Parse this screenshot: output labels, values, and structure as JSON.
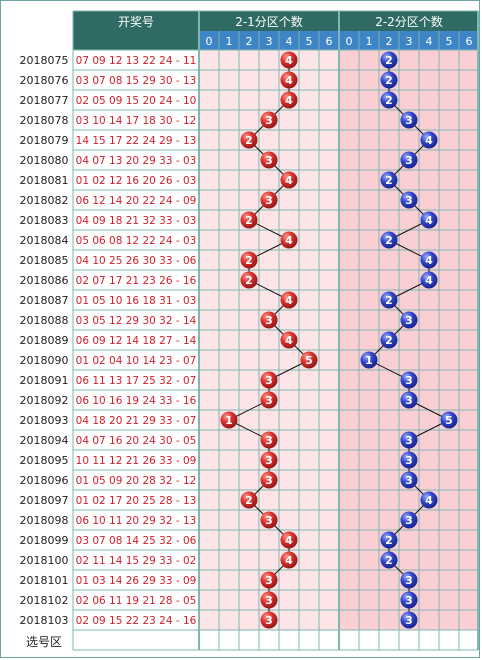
{
  "header": {
    "draw_numbers": "开奖号",
    "zone1_title": "2-1分区个数",
    "zone2_title": "2-2分区个数",
    "digits": [
      "0",
      "1",
      "2",
      "3",
      "4",
      "5",
      "6"
    ]
  },
  "footer": {
    "select_label": "选号区"
  },
  "colors": {
    "header_bg": "#2f6b64",
    "digit_row_bg": "#3d85c6",
    "zone1_bg": "#fde4e6",
    "zone2_bg": "#f9cfd3",
    "grid": "#7fb7b2",
    "draw_text": "#d2202b",
    "ball_red": "#c8262c",
    "ball_blue": "#2a3fbf"
  },
  "chart_data": {
    "type": "table",
    "rows": [
      {
        "issue": "2018075",
        "numbers": "07 09 12 13 22 24 - 11",
        "zone1": 4,
        "zone2": 2
      },
      {
        "issue": "2018076",
        "numbers": "03 07 08 15 29 30 - 13",
        "zone1": 4,
        "zone2": 2
      },
      {
        "issue": "2018077",
        "numbers": "02 05 09 15 20 24 - 10",
        "zone1": 4,
        "zone2": 2
      },
      {
        "issue": "2018078",
        "numbers": "03 10 14 17 18 30 - 12",
        "zone1": 3,
        "zone2": 3
      },
      {
        "issue": "2018079",
        "numbers": "14 15 17 22 24 29 - 13",
        "zone1": 2,
        "zone2": 4
      },
      {
        "issue": "2018080",
        "numbers": "04 07 13 20 29 33 - 03",
        "zone1": 3,
        "zone2": 3
      },
      {
        "issue": "2018081",
        "numbers": "01 02 12 16 20 26 - 03",
        "zone1": 4,
        "zone2": 2
      },
      {
        "issue": "2018082",
        "numbers": "06 12 14 20 22 24 - 09",
        "zone1": 3,
        "zone2": 3
      },
      {
        "issue": "2018083",
        "numbers": "04 09 18 21 32 33 - 03",
        "zone1": 2,
        "zone2": 4
      },
      {
        "issue": "2018084",
        "numbers": "05 06 08 12 22 24 - 03",
        "zone1": 4,
        "zone2": 2
      },
      {
        "issue": "2018085",
        "numbers": "04 10 25 26 30 33 - 06",
        "zone1": 2,
        "zone2": 4
      },
      {
        "issue": "2018086",
        "numbers": "02 07 17 21 23 26 - 16",
        "zone1": 2,
        "zone2": 4
      },
      {
        "issue": "2018087",
        "numbers": "01 05 10 16 18 31 - 03",
        "zone1": 4,
        "zone2": 2
      },
      {
        "issue": "2018088",
        "numbers": "03 05 12 29 30 32 - 14",
        "zone1": 3,
        "zone2": 3
      },
      {
        "issue": "2018089",
        "numbers": "06 09 12 14 18 27 - 14",
        "zone1": 4,
        "zone2": 2
      },
      {
        "issue": "2018090",
        "numbers": "01 02 04 10 14 23 - 07",
        "zone1": 5,
        "zone2": 1
      },
      {
        "issue": "2018091",
        "numbers": "06 11 13 17 25 32 - 07",
        "zone1": 3,
        "zone2": 3
      },
      {
        "issue": "2018092",
        "numbers": "06 10 16 19 24 33 - 16",
        "zone1": 3,
        "zone2": 3
      },
      {
        "issue": "2018093",
        "numbers": "04 18 20 21 29 33 - 07",
        "zone1": 1,
        "zone2": 5
      },
      {
        "issue": "2018094",
        "numbers": "04 07 16 20 24 30 - 05",
        "zone1": 3,
        "zone2": 3
      },
      {
        "issue": "2018095",
        "numbers": "10 11 12 21 26 33 - 09",
        "zone1": 3,
        "zone2": 3
      },
      {
        "issue": "2018096",
        "numbers": "01 05 09 20 28 32 - 12",
        "zone1": 3,
        "zone2": 3
      },
      {
        "issue": "2018097",
        "numbers": "01 02 17 20 25 28 - 13",
        "zone1": 2,
        "zone2": 4
      },
      {
        "issue": "2018098",
        "numbers": "06 10 11 20 29 32 - 13",
        "zone1": 3,
        "zone2": 3
      },
      {
        "issue": "2018099",
        "numbers": "03 07 08 14 25 32 - 06",
        "zone1": 4,
        "zone2": 2
      },
      {
        "issue": "2018100",
        "numbers": "02 11 14 15 29 33 - 02",
        "zone1": 4,
        "zone2": 2
      },
      {
        "issue": "2018101",
        "numbers": "01 03 14 26 29 33 - 09",
        "zone1": 3,
        "zone2": 3
      },
      {
        "issue": "2018102",
        "numbers": "02 06 11 19 21 28 - 05",
        "zone1": 3,
        "zone2": 3
      },
      {
        "issue": "2018103",
        "numbers": "02 09 15 22 23 24 - 16",
        "zone1": 3,
        "zone2": 3
      }
    ]
  }
}
